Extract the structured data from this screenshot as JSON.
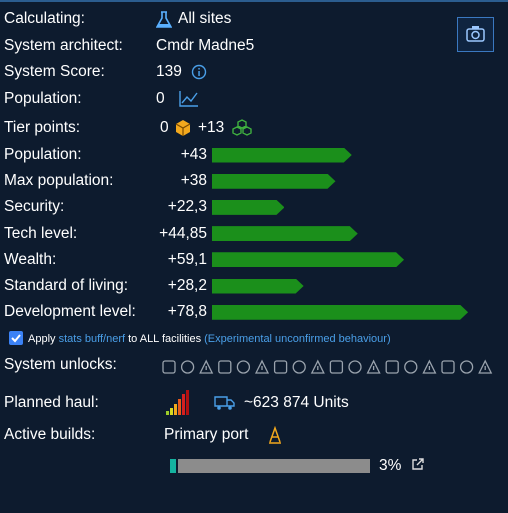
{
  "info": [
    {
      "label": "Calculating:",
      "value": "All sites"
    },
    {
      "label": "System architect:",
      "value": "Cmdr Madne5"
    },
    {
      "label": "System Score:",
      "value": "139"
    },
    {
      "label": "Population:",
      "value": "0"
    }
  ],
  "tier_points": {
    "label": "Tier points:",
    "major": "0",
    "minor": "+13"
  },
  "stats": [
    {
      "name": "Population:",
      "value": 43,
      "label": "+43"
    },
    {
      "name": "Max population:",
      "value": 38,
      "label": "+38"
    },
    {
      "name": "Security:",
      "value": 22.3,
      "label": "+22,3"
    },
    {
      "name": "Tech level:",
      "value": 44.85,
      "label": "+44,85"
    },
    {
      "name": "Wealth:",
      "value": 59.1,
      "label": "+59,1"
    },
    {
      "name": "Standard of living:",
      "value": 28.2,
      "label": "+28,2"
    },
    {
      "name": "Development level:",
      "value": 78.8,
      "label": "+78,8"
    }
  ],
  "apply": {
    "text_a": "Apply",
    "link": "stats buff/nerf",
    "text_b": "to ALL facilities",
    "note": "(Experimental unconfirmed behaviour)"
  },
  "unlocks": {
    "label": "System unlocks:"
  },
  "haul": {
    "label": "Planned haul:",
    "value": "~623 874 Units"
  },
  "builds": {
    "label": "Active builds:",
    "name": "Primary port",
    "progress": {
      "value": 3,
      "label": "3%"
    }
  }
}
